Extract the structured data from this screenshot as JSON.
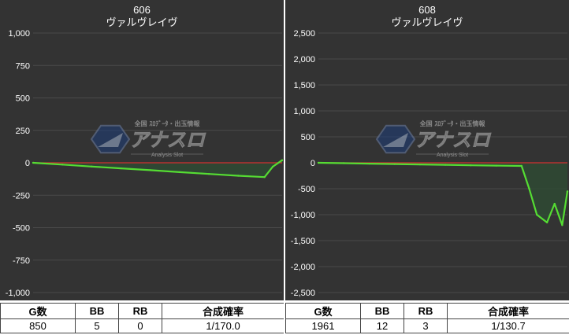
{
  "chart_data": [
    {
      "type": "area",
      "title": "606",
      "subtitle": "ヴァルヴレイヴ",
      "ylim": [
        -1000,
        1000
      ],
      "yticks": [
        1000,
        750,
        500,
        250,
        0,
        -250,
        -500,
        -750,
        -1000
      ],
      "ytick_labels": [
        "1,000",
        "750",
        "500",
        "250",
        "0",
        "-250",
        "-500",
        "-750",
        "-1,000"
      ],
      "x": [
        0,
        100,
        200,
        300,
        400,
        500,
        600,
        700,
        790,
        818,
        850
      ],
      "values": [
        0,
        -14,
        -29,
        -43,
        -57,
        -72,
        -86,
        -100,
        -110,
        -30,
        20
      ],
      "grid": true,
      "colors": {
        "line": "#55dd33",
        "fill": "#2f4a34",
        "zero": "#d03030",
        "background": "#333333"
      },
      "stats": {
        "headers": [
          "G数",
          "BB",
          "RB",
          "合成確率"
        ],
        "values": [
          "850",
          "5",
          "0",
          "1/170.0"
        ]
      }
    },
    {
      "type": "area",
      "title": "608",
      "subtitle": "ヴァルヴレイヴ",
      "ylim": [
        -2500,
        2500
      ],
      "yticks": [
        2500,
        2000,
        1500,
        1000,
        500,
        0,
        -500,
        -1000,
        -1500,
        -2000,
        -2500
      ],
      "ytick_labels": [
        "2,500",
        "2,000",
        "1,500",
        "1,000",
        "500",
        "0",
        "-500",
        "-1,000",
        "-1,500",
        "-2,000",
        "-2,500"
      ],
      "x": [
        0,
        200,
        400,
        600,
        800,
        1000,
        1200,
        1400,
        1600,
        1660,
        1720,
        1800,
        1860,
        1920,
        1961
      ],
      "values": [
        0,
        -8,
        -16,
        -24,
        -32,
        -40,
        -48,
        -55,
        -60,
        -500,
        -1000,
        -1150,
        -790,
        -1200,
        -550
      ],
      "grid": true,
      "colors": {
        "line": "#55dd33",
        "fill": "#2f4a34",
        "zero": "#d03030",
        "background": "#333333"
      },
      "stats": {
        "headers": [
          "G数",
          "BB",
          "RB",
          "合成確率"
        ],
        "values": [
          "1961",
          "12",
          "3",
          "1/130.7"
        ]
      }
    }
  ],
  "watermark": {
    "text_top": "全国 ｽﾛﾃﾞｰﾀ・出玉情報",
    "text_main": "アナスロ",
    "text_sub": "Analysis Slot",
    "icon": "anaslo-logo-icon"
  }
}
